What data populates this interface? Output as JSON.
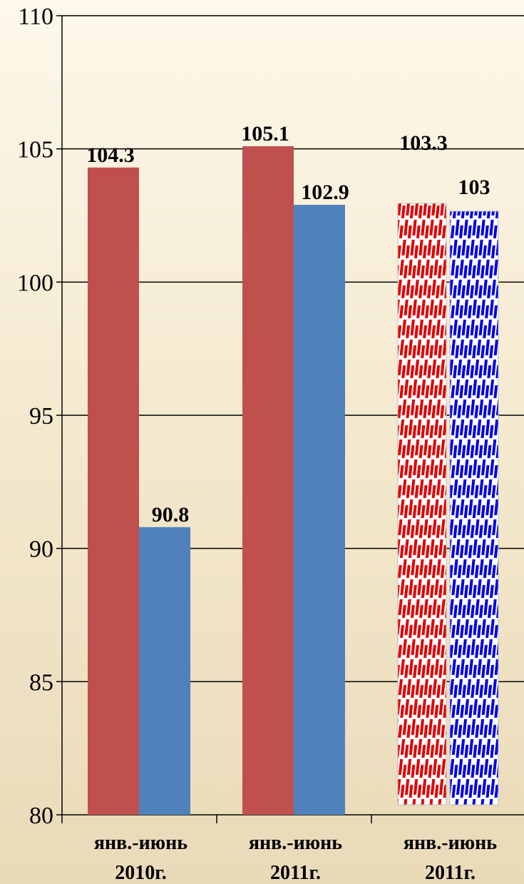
{
  "chart_data": {
    "type": "bar",
    "ylim": [
      80,
      110
    ],
    "y_ticks": [
      80,
      85,
      90,
      95,
      100,
      105,
      110
    ],
    "grid": true,
    "categories": [
      {
        "line1": "янв.-июнь",
        "line2": "2010г."
      },
      {
        "line1": "янв.-июнь",
        "line2": "2011г."
      },
      {
        "line1": "янв.-июнь",
        "line2": "2011г."
      }
    ],
    "series": [
      {
        "color": "#c0504d",
        "values": [
          104.3,
          105.1,
          103.3
        ],
        "labels": [
          "104.3",
          "105.1",
          "103.3"
        ],
        "hatched": [
          false,
          false,
          true
        ],
        "hatch_color": "#e00000"
      },
      {
        "color": "#4f81bd",
        "values": [
          90.8,
          102.9,
          103
        ],
        "labels": [
          "90.8",
          "102.9",
          "103"
        ],
        "hatched": [
          false,
          false,
          true
        ],
        "hatch_color": "#0000e0"
      }
    ]
  }
}
